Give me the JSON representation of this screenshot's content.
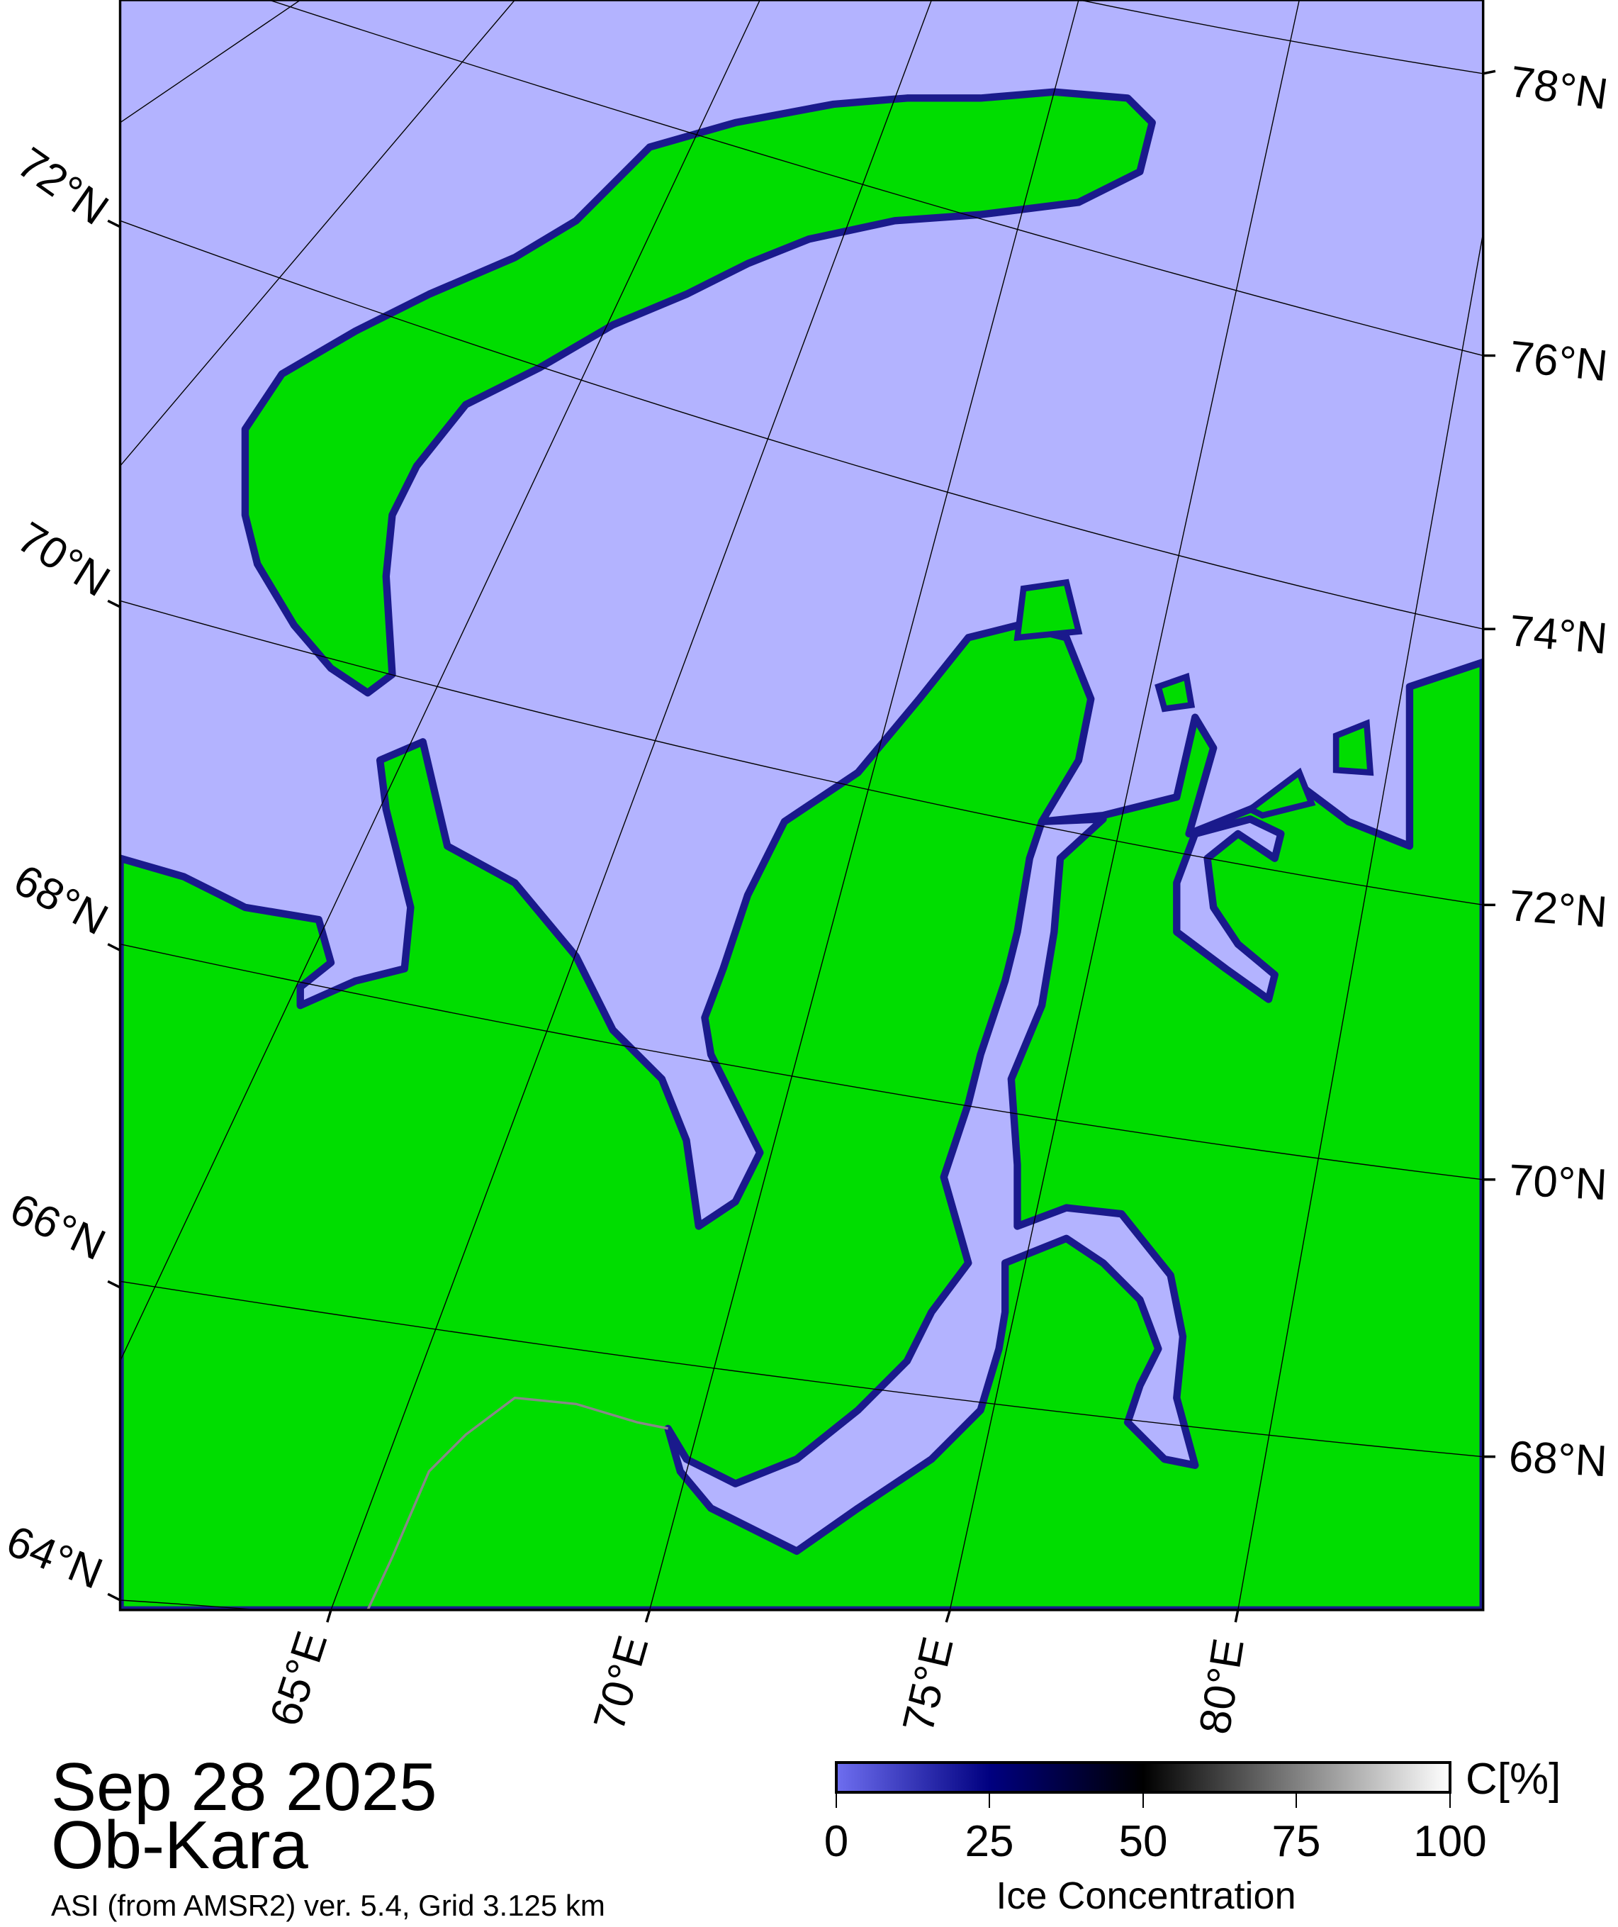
{
  "map": {
    "date": "Sep 28 2025",
    "region": "Ob-Kara",
    "source": "ASI (from AMSR2) ver. 5.4,  Grid 3.125 km",
    "colors": {
      "water": "#b3b3ff",
      "land": "#00dd00",
      "coast_ice": "#1a1a8c",
      "no_data": "#888888"
    },
    "lat_labels_right": [
      "78°N",
      "76°N",
      "74°N",
      "72°N",
      "70°N",
      "68°N"
    ],
    "lat_labels_left": [
      "72°N",
      "70°N",
      "68°N",
      "66°N",
      "64°N"
    ],
    "lon_labels_bottom": [
      "65°E",
      "70°E",
      "75°E",
      "80°E"
    ]
  },
  "colorbar": {
    "title": "Ice Concentration",
    "unit": "C[%]",
    "ticks": [
      "0",
      "25",
      "50",
      "75",
      "100"
    ],
    "range": [
      0,
      100
    ],
    "stops": [
      "#6e6ef0",
      "#000080",
      "#000000",
      "#808080",
      "#ffffff"
    ]
  }
}
